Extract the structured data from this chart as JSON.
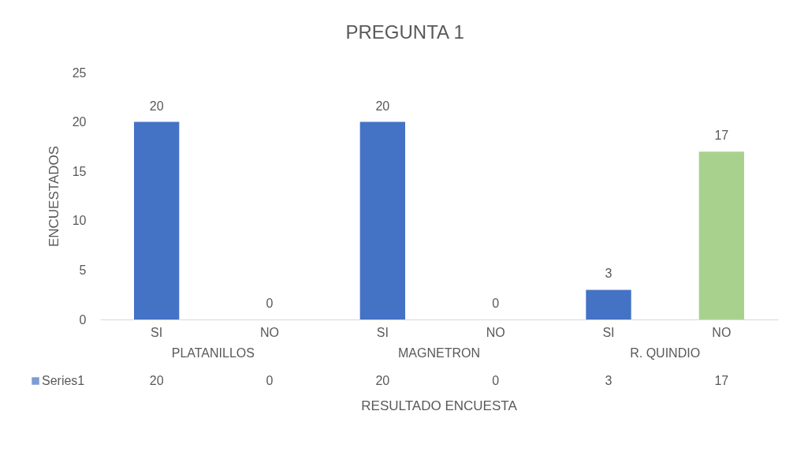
{
  "chart_data": {
    "type": "bar",
    "title": "PREGUNTA 1",
    "xlabel": "RESULTADO ENCUESTA",
    "ylabel": "ENCUESTADOS",
    "categories": [
      "SI",
      "NO",
      "SI",
      "NO",
      "SI",
      "NO"
    ],
    "annotations": [
      "PLATANILLOS",
      "MAGNETRON",
      "R. QUINDIO",
      "20",
      "0",
      "20",
      "0",
      "3",
      "17"
    ],
    "series": [
      {
        "name": "Series1",
        "color": "#4472c4",
        "colors": [
          "#4472c4",
          "#4472c4",
          "#4472c4",
          "#4472c4",
          "#4472c4",
          "#a9d18e"
        ],
        "values": [
          20,
          0,
          20,
          0,
          3,
          17
        ]
      }
    ],
    "ylim": [
      0,
      25
    ],
    "yticks": [
      0,
      5,
      10,
      15,
      20,
      25
    ],
    "grid": false,
    "data_labels": true,
    "legend": "bottom"
  }
}
